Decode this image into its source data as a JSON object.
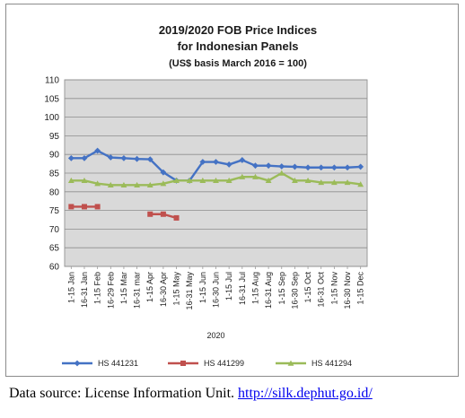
{
  "chart_data": {
    "type": "line",
    "title_lines": [
      "2019/2020 FOB Price Indices",
      "for Indonesian Panels",
      "(US$ basis March 2016 = 100)"
    ],
    "xlabel": "2020",
    "ylim": [
      60,
      110
    ],
    "yticks": [
      "60",
      "65",
      "70",
      "75",
      "80",
      "85",
      "90",
      "95",
      "100",
      "105",
      "110"
    ],
    "grid": true,
    "legend_position": "bottom",
    "categories": [
      "1-15 Jan",
      "16-31 Jan",
      "1-15 Feb",
      "16-29 Feb",
      "1-15 Mar",
      "16-31 mar",
      "1-15 Apr",
      "16-30 Apr",
      "1-15 May",
      "16-31 May",
      "1-15 Jun",
      "16-30 Jun",
      "1-15 Jul",
      "16-31 Jul",
      "1-15 Aug",
      "16-31 Aug",
      "1-15 Sep",
      "16-30 Sep",
      "1-15 Oct",
      "16-31 Oct",
      "1-15 Nov",
      "16-30 Nov",
      "1-15 Dec"
    ],
    "series": [
      {
        "name": "HS 441231",
        "color": "#4472c4",
        "marker": "diamond",
        "values": [
          89,
          89,
          91,
          89.2,
          89,
          88.8,
          88.7,
          85.2,
          83,
          83,
          88,
          88,
          87.3,
          88.5,
          87,
          87,
          86.8,
          86.7,
          86.5,
          86.5,
          86.5,
          86.5,
          86.7
        ]
      },
      {
        "name": "HS 441299",
        "color": "#c0504d",
        "marker": "square",
        "values": [
          76,
          76,
          76,
          null,
          null,
          null,
          74,
          74,
          73,
          null,
          null,
          null,
          null,
          null,
          null,
          null,
          null,
          null,
          null,
          null,
          null,
          null,
          null
        ]
      },
      {
        "name": "HS 441294",
        "color": "#9bbb59",
        "marker": "triangle",
        "values": [
          83,
          83,
          82.2,
          81.8,
          81.8,
          81.8,
          81.8,
          82.2,
          83,
          83,
          83,
          83,
          83,
          84,
          84,
          83,
          85,
          83,
          83,
          82.5,
          82.5,
          82.5,
          82
        ]
      }
    ]
  },
  "source": {
    "text": "Data source: License Information Unit. ",
    "link": "http://silk.dephut.go.id/"
  }
}
